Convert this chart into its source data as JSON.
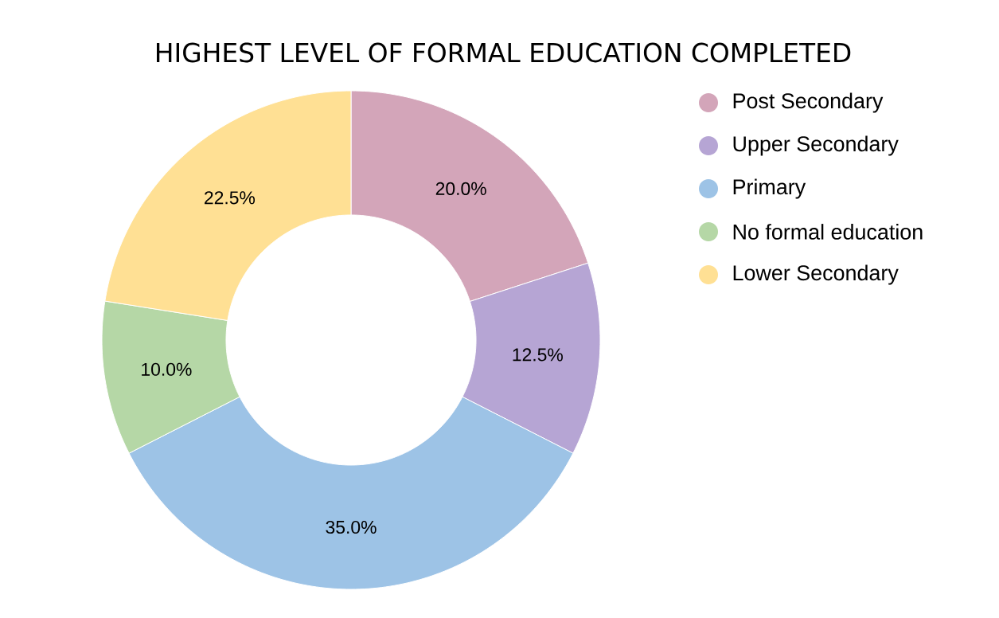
{
  "chart_data": {
    "type": "donut",
    "title": "HIGHEST LEVEL OF FORMAL EDUCATION COMPLETED",
    "categories": [
      "Post Secondary",
      "Upper Secondary",
      "Primary",
      "No formal education",
      "Lower Secondary"
    ],
    "values": [
      20.0,
      12.5,
      35.0,
      10.0,
      22.5
    ],
    "value_labels": [
      "20.0%",
      "12.5%",
      "35.0%",
      "10.0%",
      "22.5%"
    ],
    "colors": [
      "#d3a5b9",
      "#b6a5d4",
      "#9dc3e6",
      "#b5d7a6",
      "#ffe094"
    ],
    "legend": "top right"
  }
}
